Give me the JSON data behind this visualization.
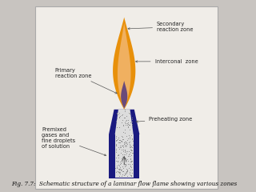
{
  "background_color": "#c8c4c0",
  "panel_color": "#f0ede8",
  "title": "Fig. 7.7:  Schematic structure of a laminar flow flame showing various zones",
  "title_fontsize": 5.2,
  "labels": {
    "secondary": "Secondary\nreaction zone",
    "interconal": "Interconal  zone",
    "primary": "Primary\nreaction zone",
    "preheating": "Preheating zone",
    "premixed": "Premixed\ngases and\nfine droplets\nof solution"
  },
  "flame_orange_outer": "#e8900a",
  "flame_orange_inner": "#f0b060",
  "flame_tip_color": "#f5d080",
  "interconal_color": "#6a4a7a",
  "burner_blue": "#1a1a80",
  "burner_white": "#dcdcdc",
  "arrow_color": "#555555",
  "label_fontsize": 4.8,
  "label_color": "#222222"
}
